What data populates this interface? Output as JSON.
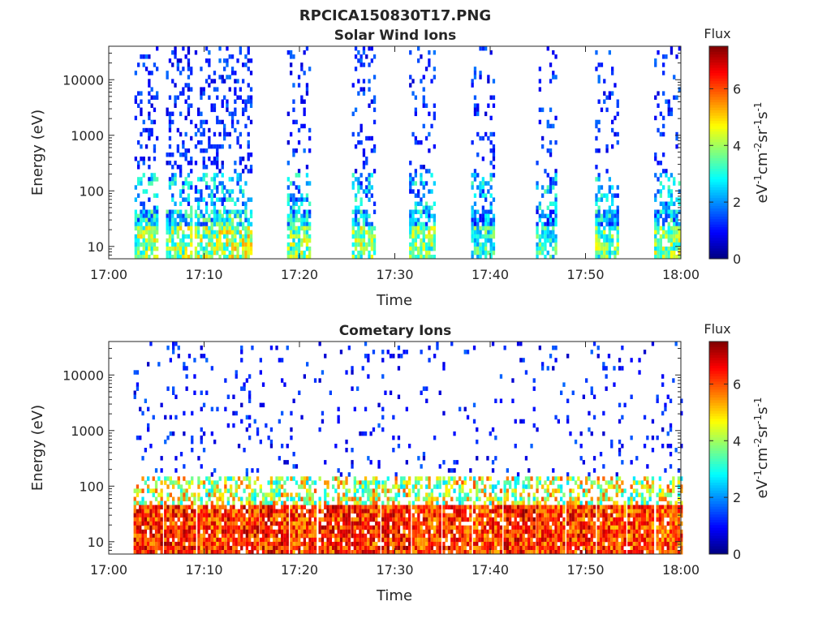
{
  "figure_title": "RPCICA150830T17.PNG",
  "colorbar_unit": {
    "a": "eV",
    "a_sup": "-1",
    "b": "cm",
    "b_sup": "-2",
    "c": "sr",
    "c_sup": "-1",
    "d": "s",
    "d_sup": "-1"
  },
  "colormap": [
    "#00007f",
    "#0000ff",
    "#007fff",
    "#00ffff",
    "#7fff7f",
    "#ffff00",
    "#ff7f00",
    "#ff0000",
    "#7f0000"
  ],
  "chart_data": [
    {
      "type": "heatmap",
      "title": "Solar Wind Ions",
      "xlabel": "Time",
      "ylabel": "Energy (eV)",
      "x_ticks": [
        "17:00",
        "17:10",
        "17:20",
        "17:30",
        "17:40",
        "17:50",
        "18:00"
      ],
      "x_range_min": [
        0,
        60
      ],
      "y_scale": "log",
      "y_ticks": [
        "10",
        "100",
        "1000",
        "10000"
      ],
      "y_range": [
        6,
        40000
      ],
      "colorbar": {
        "label": "Flux",
        "range": [
          0,
          7.5
        ],
        "ticks": [
          "0",
          "2",
          "4",
          "6"
        ]
      },
      "scan_bursts": [
        {
          "start": 2.7,
          "end": 5.2,
          "flux": 4.5,
          "hi_density": 0.24
        },
        {
          "start": 6.0,
          "end": 8.6,
          "flux": 4.5,
          "hi_density": 0.24
        },
        {
          "start": 9.0,
          "end": 11.8,
          "flux": 4.6,
          "hi_density": 0.26
        },
        {
          "start": 12.0,
          "end": 15.0,
          "flux": 4.7,
          "hi_density": 0.26
        },
        {
          "start": 18.7,
          "end": 21.0,
          "flux": 4.3,
          "hi_density": 0.16
        },
        {
          "start": 25.5,
          "end": 27.8,
          "flux": 4.4,
          "hi_density": 0.16
        },
        {
          "start": 31.5,
          "end": 34.2,
          "flux": 4.4,
          "hi_density": 0.16
        },
        {
          "start": 38.0,
          "end": 40.5,
          "flux": 3.6,
          "hi_density": 0.13
        },
        {
          "start": 44.8,
          "end": 47.0,
          "flux": 3.6,
          "hi_density": 0.13
        },
        {
          "start": 51.0,
          "end": 53.5,
          "flux": 4.2,
          "hi_density": 0.15
        },
        {
          "start": 57.2,
          "end": 59.8,
          "flux": 4.3,
          "hi_density": 0.15
        }
      ]
    },
    {
      "type": "heatmap",
      "title": "Cometary Ions",
      "xlabel": "Time",
      "ylabel": "Energy (eV)",
      "x_ticks": [
        "17:00",
        "17:10",
        "17:20",
        "17:30",
        "17:40",
        "17:50",
        "18:00"
      ],
      "x_range_min": [
        0,
        60
      ],
      "y_scale": "log",
      "y_ticks": [
        "10",
        "100",
        "1000",
        "10000"
      ],
      "y_range": [
        6,
        40000
      ],
      "colorbar": {
        "label": "Flux",
        "range": [
          0,
          7.5
        ],
        "ticks": [
          "0",
          "2",
          "4",
          "6"
        ]
      },
      "scan_bursts": [
        {
          "start": 2.6,
          "end": 5.5,
          "flux": 7.0,
          "hi_density": 0.06
        },
        {
          "start": 5.8,
          "end": 9.0,
          "flux": 7.0,
          "hi_density": 0.07
        },
        {
          "start": 9.3,
          "end": 12.2,
          "flux": 6.8,
          "hi_density": 0.06
        },
        {
          "start": 12.4,
          "end": 15.5,
          "flux": 7.0,
          "hi_density": 0.06
        },
        {
          "start": 15.8,
          "end": 18.8,
          "flux": 7.0,
          "hi_density": 0.05
        },
        {
          "start": 19.0,
          "end": 21.8,
          "flux": 6.8,
          "hi_density": 0.05
        },
        {
          "start": 22.0,
          "end": 25.2,
          "flux": 7.0,
          "hi_density": 0.05
        },
        {
          "start": 25.4,
          "end": 28.4,
          "flux": 6.9,
          "hi_density": 0.05
        },
        {
          "start": 28.6,
          "end": 31.6,
          "flux": 7.0,
          "hi_density": 0.05
        },
        {
          "start": 31.8,
          "end": 34.8,
          "flux": 6.8,
          "hi_density": 0.05
        },
        {
          "start": 35.0,
          "end": 38.0,
          "flux": 6.9,
          "hi_density": 0.05
        },
        {
          "start": 38.2,
          "end": 41.2,
          "flux": 6.7,
          "hi_density": 0.05
        },
        {
          "start": 41.4,
          "end": 44.6,
          "flux": 7.1,
          "hi_density": 0.05
        },
        {
          "start": 44.8,
          "end": 47.8,
          "flux": 6.8,
          "hi_density": 0.05
        },
        {
          "start": 48.0,
          "end": 51.0,
          "flux": 6.9,
          "hi_density": 0.05
        },
        {
          "start": 51.2,
          "end": 54.2,
          "flux": 6.8,
          "hi_density": 0.05
        },
        {
          "start": 54.4,
          "end": 57.2,
          "flux": 6.7,
          "hi_density": 0.05
        },
        {
          "start": 57.4,
          "end": 60.0,
          "flux": 6.6,
          "hi_density": 0.05
        }
      ]
    }
  ]
}
